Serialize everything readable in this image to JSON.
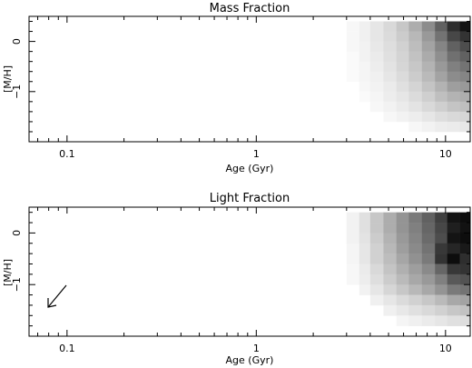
{
  "chart_data": [
    {
      "type": "heatmap",
      "title": "Mass Fraction",
      "xlabel": "Age (Gyr)",
      "ylabel": "[M/H]",
      "xscale": "log",
      "xlim": [
        0.063,
        13.5
      ],
      "ylim": [
        -2.0,
        0.5
      ],
      "xticks": [
        0.1,
        1,
        10
      ],
      "xtick_labels": [
        "0.1",
        "1",
        "10"
      ],
      "yticks": [
        0,
        -1
      ],
      "ytick_labels": [
        "0",
        "−1"
      ],
      "x_bins": [
        3.0,
        3.5,
        4.0,
        4.7,
        5.5,
        6.4,
        7.5,
        8.8,
        10.2,
        11.9,
        13.5
      ],
      "mh_bins": [
        0.4,
        0.2,
        0.0,
        -0.2,
        -0.4,
        -0.6,
        -0.8,
        -1.0,
        -1.2,
        -1.4,
        -1.6
      ],
      "mh_step": 0.2,
      "intensity": [
        [
          0.03,
          0.06,
          0.1,
          0.15,
          0.22,
          0.32,
          0.45,
          0.62,
          0.82,
          0.92
        ],
        [
          0.03,
          0.06,
          0.1,
          0.14,
          0.2,
          0.28,
          0.4,
          0.55,
          0.72,
          0.8
        ],
        [
          0.03,
          0.05,
          0.09,
          0.13,
          0.18,
          0.26,
          0.36,
          0.48,
          0.62,
          0.7
        ],
        [
          0.02,
          0.05,
          0.08,
          0.12,
          0.17,
          0.24,
          0.33,
          0.44,
          0.56,
          0.62
        ],
        [
          0.02,
          0.04,
          0.07,
          0.11,
          0.16,
          0.22,
          0.3,
          0.4,
          0.5,
          0.55
        ],
        [
          0.02,
          0.04,
          0.06,
          0.1,
          0.14,
          0.2,
          0.27,
          0.36,
          0.45,
          0.48
        ],
        [
          0.0,
          0.03,
          0.05,
          0.08,
          0.12,
          0.17,
          0.23,
          0.3,
          0.38,
          0.4
        ],
        [
          0.0,
          0.02,
          0.04,
          0.07,
          0.1,
          0.14,
          0.19,
          0.25,
          0.3,
          0.32
        ],
        [
          0.0,
          0.0,
          0.03,
          0.05,
          0.08,
          0.11,
          0.15,
          0.19,
          0.23,
          0.25
        ],
        [
          0.0,
          0.0,
          0.0,
          0.03,
          0.05,
          0.07,
          0.1,
          0.13,
          0.15,
          0.16
        ],
        [
          0.0,
          0.0,
          0.0,
          0.0,
          0.0,
          0.03,
          0.05,
          0.07,
          0.08,
          0.09
        ]
      ]
    },
    {
      "type": "heatmap",
      "title": "Light Fraction",
      "xlabel": "Age (Gyr)",
      "ylabel": "[M/H]",
      "xscale": "log",
      "xlim": [
        0.063,
        13.5
      ],
      "ylim": [
        -2.0,
        0.5
      ],
      "xticks": [
        0.1,
        1,
        10
      ],
      "xtick_labels": [
        "0.1",
        "1",
        "10"
      ],
      "yticks": [
        0,
        -1
      ],
      "ytick_labels": [
        "0",
        "−1"
      ],
      "x_bins": [
        3.0,
        3.5,
        4.0,
        4.7,
        5.5,
        6.4,
        7.5,
        8.8,
        10.2,
        11.9,
        13.5
      ],
      "mh_bins": [
        0.4,
        0.2,
        0.0,
        -0.2,
        -0.4,
        -0.6,
        -0.8,
        -1.0,
        -1.2,
        -1.4,
        -1.6
      ],
      "mh_step": 0.2,
      "intensity": [
        [
          0.05,
          0.12,
          0.22,
          0.32,
          0.42,
          0.52,
          0.62,
          0.75,
          0.92,
          0.95
        ],
        [
          0.05,
          0.12,
          0.22,
          0.32,
          0.42,
          0.5,
          0.6,
          0.72,
          0.88,
          0.93
        ],
        [
          0.05,
          0.11,
          0.2,
          0.3,
          0.4,
          0.48,
          0.58,
          0.7,
          0.92,
          0.95
        ],
        [
          0.04,
          0.1,
          0.18,
          0.28,
          0.38,
          0.46,
          0.55,
          0.78,
          0.85,
          0.9
        ],
        [
          0.04,
          0.1,
          0.18,
          0.26,
          0.35,
          0.43,
          0.52,
          0.8,
          0.95,
          0.82
        ],
        [
          0.03,
          0.08,
          0.15,
          0.23,
          0.31,
          0.38,
          0.46,
          0.6,
          0.78,
          0.8
        ],
        [
          0.03,
          0.07,
          0.13,
          0.2,
          0.27,
          0.34,
          0.4,
          0.5,
          0.65,
          0.68
        ],
        [
          0.0,
          0.05,
          0.1,
          0.16,
          0.22,
          0.28,
          0.34,
          0.42,
          0.52,
          0.55
        ],
        [
          0.0,
          0.0,
          0.06,
          0.1,
          0.14,
          0.18,
          0.22,
          0.27,
          0.34,
          0.36
        ],
        [
          0.0,
          0.0,
          0.0,
          0.06,
          0.09,
          0.12,
          0.15,
          0.18,
          0.22,
          0.24
        ],
        [
          0.0,
          0.0,
          0.0,
          0.0,
          0.04,
          0.06,
          0.08,
          0.1,
          0.12,
          0.13
        ]
      ],
      "annotation": "arrow"
    }
  ]
}
